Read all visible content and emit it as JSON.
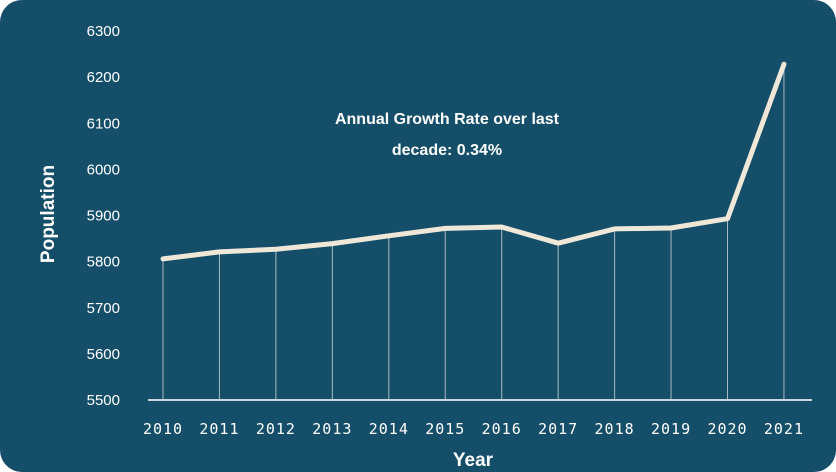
{
  "chart_data": {
    "type": "line",
    "title": "",
    "xlabel": "Year",
    "ylabel": "Population",
    "ylim": [
      5500,
      6300
    ],
    "yticks": [
      5500,
      5600,
      5700,
      5800,
      5900,
      6000,
      6100,
      6200,
      6300
    ],
    "categories": [
      "2010",
      "2011",
      "2012",
      "2013",
      "2014",
      "2015",
      "2016",
      "2017",
      "2018",
      "2019",
      "2020",
      "2021"
    ],
    "series": [
      {
        "values": [
          5806,
          5821,
          5827,
          5839,
          5856,
          5872,
          5875,
          5840,
          5871,
          5873,
          5893,
          6228
        ]
      }
    ],
    "annotations": [
      "Annual Growth Rate over last",
      "decade: 0.34%"
    ],
    "grid": "vertical drop lines",
    "colors": {
      "background": "#154e69",
      "line": "#efe8d8",
      "droplines": "#c9d6dd",
      "text": "#ffffff"
    }
  }
}
